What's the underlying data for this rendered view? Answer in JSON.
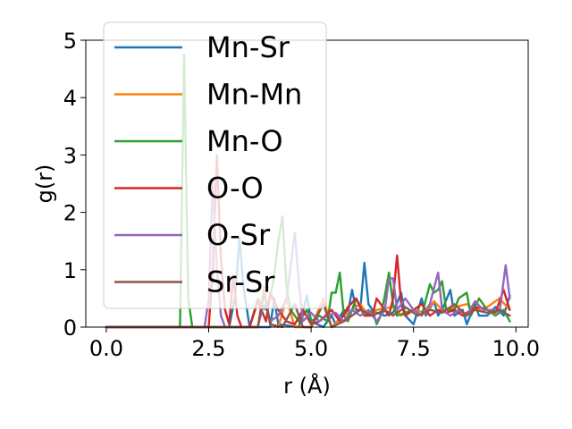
{
  "chart_data": {
    "type": "line",
    "xlabel": "r (Å)",
    "ylabel": "g(r)",
    "xlim": [
      -0.5,
      10.3
    ],
    "ylim": [
      0,
      5
    ],
    "xticks": [
      0.0,
      2.5,
      5.0,
      7.5,
      10.0
    ],
    "xtick_labels": [
      "0.0",
      "2.5",
      "5.0",
      "7.5",
      "10.0"
    ],
    "yticks": [
      0,
      1,
      2,
      3,
      4,
      5
    ],
    "ytick_labels": [
      "0",
      "1",
      "2",
      "3",
      "4",
      "5"
    ],
    "legend_position": "upper-left",
    "grid": false,
    "series": [
      {
        "name": "Mn-Sr",
        "color": "#1f77b4",
        "points": [
          [
            0,
            0
          ],
          [
            3.0,
            0
          ],
          [
            3.15,
            0.55
          ],
          [
            3.25,
            1.55
          ],
          [
            3.35,
            0.7
          ],
          [
            3.5,
            0
          ],
          [
            4.0,
            0
          ],
          [
            4.1,
            0.5
          ],
          [
            4.2,
            0.05
          ],
          [
            4.7,
            0
          ],
          [
            4.9,
            0.55
          ],
          [
            5.0,
            0.1
          ],
          [
            5.3,
            0
          ],
          [
            5.5,
            0.2
          ],
          [
            5.6,
            0.05
          ],
          [
            5.8,
            0.3
          ],
          [
            5.9,
            0.25
          ],
          [
            6.0,
            0.65
          ],
          [
            6.1,
            0.3
          ],
          [
            6.2,
            0.3
          ],
          [
            6.3,
            1.12
          ],
          [
            6.4,
            0.4
          ],
          [
            6.5,
            0.3
          ],
          [
            6.6,
            0.25
          ],
          [
            6.8,
            0.2
          ],
          [
            7.0,
            0.25
          ],
          [
            7.2,
            0.6
          ],
          [
            7.3,
            0.2
          ],
          [
            7.5,
            0.05
          ],
          [
            7.7,
            0.5
          ],
          [
            7.8,
            0.2
          ],
          [
            8.0,
            0.45
          ],
          [
            8.1,
            0.2
          ],
          [
            8.2,
            0.3
          ],
          [
            8.4,
            0.65
          ],
          [
            8.5,
            0.2
          ],
          [
            8.7,
            0.3
          ],
          [
            8.8,
            0.05
          ],
          [
            9.0,
            0.4
          ],
          [
            9.1,
            0.2
          ],
          [
            9.3,
            0.2
          ],
          [
            9.5,
            0.35
          ],
          [
            9.7,
            0.2
          ],
          [
            9.85,
            0.55
          ]
        ]
      },
      {
        "name": "Mn-Mn",
        "color": "#ff7f0e",
        "points": [
          [
            0,
            0
          ],
          [
            3.7,
            0
          ],
          [
            3.85,
            0.7
          ],
          [
            4.0,
            0.05
          ],
          [
            4.2,
            0
          ],
          [
            4.4,
            0.5
          ],
          [
            4.6,
            0
          ],
          [
            5.0,
            0
          ],
          [
            5.3,
            0.5
          ],
          [
            5.5,
            0
          ],
          [
            5.8,
            0.2
          ],
          [
            6.0,
            0.3
          ],
          [
            6.2,
            0.4
          ],
          [
            6.4,
            0.2
          ],
          [
            6.6,
            0.3
          ],
          [
            7.0,
            0.35
          ],
          [
            7.2,
            0.2
          ],
          [
            7.5,
            0.3
          ],
          [
            7.8,
            0.25
          ],
          [
            8.0,
            0.45
          ],
          [
            8.2,
            0.3
          ],
          [
            8.5,
            0.35
          ],
          [
            8.8,
            0.4
          ],
          [
            9.0,
            0.3
          ],
          [
            9.3,
            0.35
          ],
          [
            9.6,
            0.5
          ],
          [
            9.85,
            0.3
          ]
        ]
      },
      {
        "name": "Mn-O",
        "color": "#2ca02c",
        "points": [
          [
            0,
            0
          ],
          [
            1.8,
            0
          ],
          [
            1.9,
            4.75
          ],
          [
            2.0,
            0.5
          ],
          [
            2.1,
            0
          ],
          [
            3.5,
            0
          ],
          [
            3.7,
            0.5
          ],
          [
            3.9,
            0.3
          ],
          [
            4.0,
            0.5
          ],
          [
            4.1,
            0.9
          ],
          [
            4.2,
            1.5
          ],
          [
            4.3,
            1.93
          ],
          [
            4.4,
            0.7
          ],
          [
            4.5,
            0.3
          ],
          [
            4.7,
            0.1
          ],
          [
            4.9,
            0.3
          ],
          [
            5.0,
            0.1
          ],
          [
            5.2,
            0.2
          ],
          [
            5.4,
            0.1
          ],
          [
            5.5,
            0.6
          ],
          [
            5.6,
            0.6
          ],
          [
            5.7,
            0.95
          ],
          [
            5.8,
            0.2
          ],
          [
            5.9,
            0.1
          ],
          [
            6.0,
            0.3
          ],
          [
            6.1,
            0.5
          ],
          [
            6.3,
            0.2
          ],
          [
            6.5,
            0.3
          ],
          [
            6.6,
            0.05
          ],
          [
            6.7,
            0.2
          ],
          [
            6.8,
            0.55
          ],
          [
            6.9,
            0.95
          ],
          [
            7.0,
            0.4
          ],
          [
            7.1,
            0.2
          ],
          [
            7.3,
            0.25
          ],
          [
            7.5,
            0.3
          ],
          [
            7.7,
            0.2
          ],
          [
            7.9,
            0.75
          ],
          [
            8.0,
            0.6
          ],
          [
            8.1,
            0.65
          ],
          [
            8.2,
            0.8
          ],
          [
            8.3,
            0.3
          ],
          [
            8.5,
            0.3
          ],
          [
            8.6,
            0.5
          ],
          [
            8.8,
            0.6
          ],
          [
            8.9,
            0.2
          ],
          [
            9.1,
            0.5
          ],
          [
            9.3,
            0.3
          ],
          [
            9.5,
            0.2
          ],
          [
            9.7,
            0.3
          ],
          [
            9.85,
            0.1
          ]
        ]
      },
      {
        "name": "O-O",
        "color": "#d62728",
        "points": [
          [
            0,
            0
          ],
          [
            2.5,
            0
          ],
          [
            2.6,
            1.0
          ],
          [
            2.7,
            3.0
          ],
          [
            2.8,
            1.2
          ],
          [
            2.9,
            0.3
          ],
          [
            3.0,
            0.05
          ],
          [
            3.1,
            0.9
          ],
          [
            3.2,
            0.2
          ],
          [
            3.3,
            0
          ],
          [
            3.5,
            0
          ],
          [
            3.7,
            0.45
          ],
          [
            3.9,
            0.1
          ],
          [
            4.0,
            0.6
          ],
          [
            4.2,
            0.3
          ],
          [
            4.4,
            0.1
          ],
          [
            4.6,
            0.05
          ],
          [
            4.8,
            0.3
          ],
          [
            5.0,
            0.05
          ],
          [
            5.2,
            0.1
          ],
          [
            5.5,
            0.3
          ],
          [
            5.7,
            0.1
          ],
          [
            5.9,
            0.35
          ],
          [
            6.1,
            0.5
          ],
          [
            6.3,
            0.2
          ],
          [
            6.5,
            0.2
          ],
          [
            6.6,
            0.5
          ],
          [
            6.8,
            0.3
          ],
          [
            6.9,
            0.2
          ],
          [
            7.0,
            0.5
          ],
          [
            7.1,
            1.25
          ],
          [
            7.2,
            0.4
          ],
          [
            7.3,
            0.2
          ],
          [
            7.5,
            0.3
          ],
          [
            7.7,
            0.4
          ],
          [
            7.9,
            0.2
          ],
          [
            8.1,
            0.3
          ],
          [
            8.3,
            0.25
          ],
          [
            8.5,
            0.3
          ],
          [
            8.7,
            0.2
          ],
          [
            8.9,
            0.3
          ],
          [
            9.1,
            0.35
          ],
          [
            9.3,
            0.3
          ],
          [
            9.5,
            0.25
          ],
          [
            9.7,
            0.65
          ],
          [
            9.85,
            0.3
          ]
        ]
      },
      {
        "name": "O-Sr",
        "color": "#9467bd",
        "points": [
          [
            0,
            0
          ],
          [
            2.4,
            0
          ],
          [
            2.5,
            0.5
          ],
          [
            2.6,
            2.55
          ],
          [
            2.7,
            1.0
          ],
          [
            2.8,
            0.2
          ],
          [
            2.9,
            0
          ],
          [
            3.7,
            0
          ],
          [
            3.8,
            0.3
          ],
          [
            3.9,
            0.4
          ],
          [
            4.0,
            0.1
          ],
          [
            4.2,
            0.2
          ],
          [
            4.4,
            0.5
          ],
          [
            4.5,
            1.05
          ],
          [
            4.6,
            1.65
          ],
          [
            4.7,
            0.8
          ],
          [
            4.8,
            0.1
          ],
          [
            5.0,
            0.25
          ],
          [
            5.2,
            0.1
          ],
          [
            5.4,
            0.2
          ],
          [
            5.6,
            0.25
          ],
          [
            5.8,
            0.1
          ],
          [
            6.0,
            0.3
          ],
          [
            6.2,
            0.2
          ],
          [
            6.4,
            0.3
          ],
          [
            6.6,
            0.1
          ],
          [
            6.8,
            0.3
          ],
          [
            6.9,
            0.85
          ],
          [
            7.0,
            0.85
          ],
          [
            7.1,
            0.3
          ],
          [
            7.3,
            0.5
          ],
          [
            7.5,
            0.3
          ],
          [
            7.7,
            0.2
          ],
          [
            7.9,
            0.4
          ],
          [
            8.1,
            0.95
          ],
          [
            8.2,
            0.3
          ],
          [
            8.4,
            0.2
          ],
          [
            8.6,
            0.3
          ],
          [
            8.8,
            0.2
          ],
          [
            9.0,
            0.45
          ],
          [
            9.2,
            0.3
          ],
          [
            9.4,
            0.3
          ],
          [
            9.6,
            0.25
          ],
          [
            9.75,
            1.08
          ],
          [
            9.85,
            0.5
          ]
        ]
      },
      {
        "name": "Sr-Sr",
        "color": "#8c564b",
        "points": [
          [
            0,
            0
          ],
          [
            3.7,
            0
          ],
          [
            3.85,
            0.6
          ],
          [
            4.0,
            0.05
          ],
          [
            4.3,
            0
          ],
          [
            4.6,
            0.4
          ],
          [
            4.8,
            0
          ],
          [
            5.0,
            0
          ],
          [
            5.3,
            0.4
          ],
          [
            5.5,
            0
          ],
          [
            5.8,
            0.1
          ],
          [
            6.0,
            0.2
          ],
          [
            6.2,
            0.3
          ],
          [
            6.5,
            0.2
          ],
          [
            6.8,
            0.3
          ],
          [
            7.0,
            0.2
          ],
          [
            7.3,
            0.35
          ],
          [
            7.6,
            0.2
          ],
          [
            7.9,
            0.3
          ],
          [
            8.2,
            0.25
          ],
          [
            8.5,
            0.4
          ],
          [
            8.8,
            0.2
          ],
          [
            9.0,
            0.3
          ],
          [
            9.3,
            0.25
          ],
          [
            9.6,
            0.3
          ],
          [
            9.85,
            0.2
          ]
        ]
      }
    ]
  }
}
